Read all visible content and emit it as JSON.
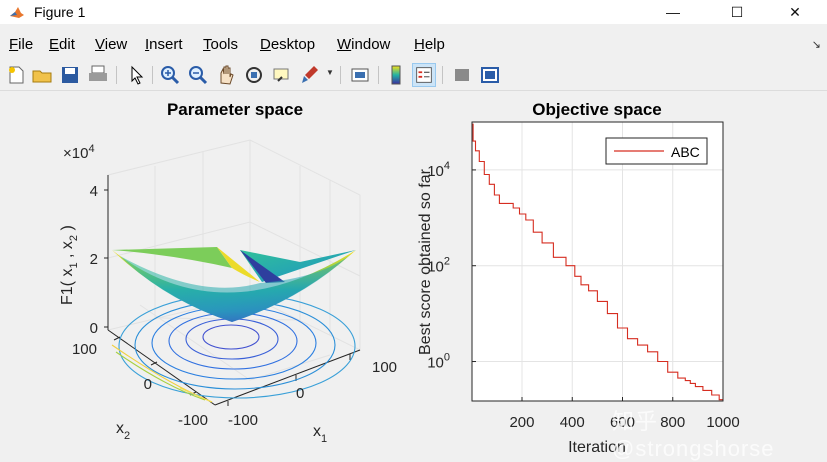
{
  "window": {
    "title": "Figure 1",
    "controls": {
      "minimize": "—",
      "maximize": "☐",
      "close": "✕"
    }
  },
  "menu": {
    "items": [
      {
        "mnemonic": "F",
        "rest": "ile"
      },
      {
        "mnemonic": "E",
        "rest": "dit"
      },
      {
        "mnemonic": "V",
        "rest": "iew"
      },
      {
        "mnemonic": "I",
        "rest": "nsert"
      },
      {
        "mnemonic": "T",
        "rest": "ools"
      },
      {
        "mnemonic": "D",
        "rest": "esktop"
      },
      {
        "mnemonic": "W",
        "rest": "indow"
      },
      {
        "mnemonic": "H",
        "rest": "elp"
      }
    ],
    "dock_glyph": "↘"
  },
  "toolbar": {
    "icons": [
      "new-figure-icon",
      "open-file-icon",
      "save-icon",
      "print-icon",
      "pointer-icon",
      "zoom-in-icon",
      "zoom-out-icon",
      "pan-icon",
      "rotate-3d-icon",
      "data-cursor-icon",
      "brush-icon",
      "link-plot-icon",
      "colorbar-icon",
      "legend-icon",
      "hide-plot-tools-icon",
      "show-plot-tools-icon"
    ]
  },
  "left_plot": {
    "title": "Parameter space",
    "z_exponent_prefix": "×10",
    "z_exponent_power": "4",
    "z_ticks": [
      "4",
      "2",
      "0"
    ],
    "zlabel": {
      "text": "F1( x",
      "sub1": "1",
      "comma": " , x",
      "sub2": "2",
      "close": " )"
    },
    "x2_ticks": [
      "100",
      "0",
      "-100"
    ],
    "x1_ticks": [
      "-100",
      "0",
      "100"
    ],
    "x1_label": "x",
    "x1_sub": "1",
    "x2_label": "x",
    "x2_sub": "2"
  },
  "chart_data": {
    "type": "line",
    "title": "Objective space",
    "xlabel": "Iteration",
    "ylabel": "Best score obtained so far",
    "y_scale": "log",
    "xlim": [
      1,
      1000
    ],
    "ylim": [
      0.15,
      100000
    ],
    "x_ticks": [
      "200",
      "400",
      "600",
      "800",
      "1000"
    ],
    "y_ticks": [
      {
        "base": "10",
        "exp": "4",
        "value": 10000
      },
      {
        "base": "10",
        "exp": "2",
        "value": 100
      },
      {
        "base": "10",
        "exp": "0",
        "value": 1
      }
    ],
    "grid": true,
    "legend_position": "top-right",
    "series": [
      {
        "name": "ABC",
        "color": "#d62d20",
        "x": [
          1,
          10,
          20,
          40,
          60,
          80,
          100,
          120,
          150,
          180,
          200,
          230,
          260,
          300,
          350,
          400,
          420,
          450,
          480,
          520,
          560,
          600,
          640,
          680,
          720,
          760,
          800,
          840,
          860,
          880,
          900,
          940,
          970,
          1000
        ],
        "y": [
          90000,
          40000,
          25000,
          15000,
          8000,
          5000,
          3000,
          2000,
          2000,
          1600,
          1200,
          900,
          500,
          300,
          150,
          100,
          60,
          40,
          30,
          18,
          10,
          5,
          3,
          2.2,
          1.6,
          1,
          0.6,
          0.45,
          0.4,
          0.35,
          0.3,
          0.25,
          0.2,
          0.16
        ]
      }
    ]
  },
  "watermark": "知乎 @strongshorse",
  "colors": {
    "plot_bg": "#ffffff",
    "figure_bg": "#f0f0f0",
    "line": "#d62d20"
  }
}
